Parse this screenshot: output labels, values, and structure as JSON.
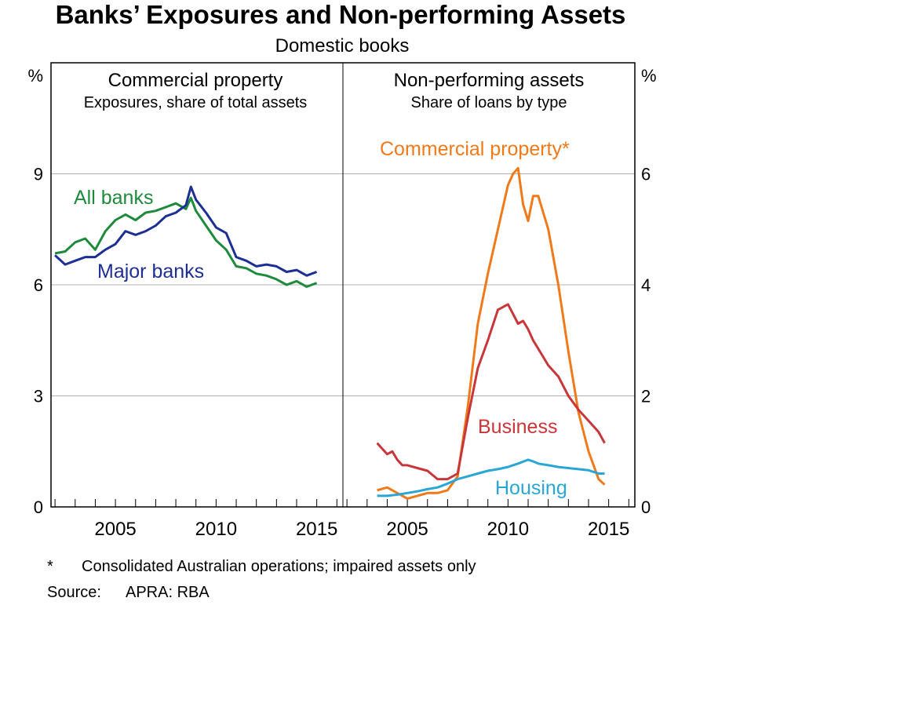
{
  "title": "Banks’ Exposures and Non-performing Assets",
  "subtitle": "Domestic books",
  "footnote_marker": "*",
  "footnote": "Consolidated Australian operations; impaired assets only",
  "source_label": "Source:",
  "source": "APRA: RBA",
  "colors": {
    "all_banks": "#1e8a3c",
    "major_banks": "#1d2f94",
    "commercial_property": "#f07a1a",
    "business": "#c8363a",
    "housing": "#2aa6d6",
    "grid": "#b0b0b0"
  },
  "chart_data": [
    {
      "type": "line",
      "title": "Commercial property",
      "subtitle": "Exposures, share of total assets",
      "ylabel": "%",
      "ylim": [
        0,
        12
      ],
      "yticks": [
        0,
        3,
        6,
        9
      ],
      "xlim": [
        2001.8,
        2016.3
      ],
      "xticks": [
        2005,
        2010,
        2015
      ],
      "grid": true,
      "series": [
        {
          "name": "All banks",
          "color": "#1e8a3c",
          "x": [
            2002.0,
            2002.5,
            2003.0,
            2003.5,
            2004.0,
            2004.5,
            2005.0,
            2005.5,
            2006.0,
            2006.5,
            2007.0,
            2007.5,
            2008.0,
            2008.5,
            2008.75,
            2009.0,
            2009.5,
            2010.0,
            2010.5,
            2011.0,
            2011.5,
            2012.0,
            2012.5,
            2013.0,
            2013.5,
            2014.0,
            2014.5,
            2015.0
          ],
          "y": [
            6.85,
            6.9,
            7.15,
            7.25,
            6.95,
            7.45,
            7.75,
            7.9,
            7.75,
            7.95,
            8.0,
            8.1,
            8.2,
            8.05,
            8.35,
            8.0,
            7.6,
            7.2,
            6.95,
            6.5,
            6.45,
            6.3,
            6.25,
            6.15,
            6.0,
            6.1,
            5.95,
            6.05
          ]
        },
        {
          "name": "Major banks",
          "color": "#1d2f94",
          "x": [
            2002.0,
            2002.5,
            2003.0,
            2003.5,
            2004.0,
            2004.5,
            2005.0,
            2005.5,
            2006.0,
            2006.5,
            2007.0,
            2007.5,
            2008.0,
            2008.5,
            2008.75,
            2009.0,
            2009.5,
            2010.0,
            2010.5,
            2011.0,
            2011.5,
            2012.0,
            2012.5,
            2013.0,
            2013.5,
            2014.0,
            2014.5,
            2015.0
          ],
          "y": [
            6.8,
            6.55,
            6.65,
            6.75,
            6.75,
            6.95,
            7.1,
            7.45,
            7.35,
            7.45,
            7.6,
            7.85,
            7.95,
            8.15,
            8.65,
            8.3,
            7.95,
            7.55,
            7.4,
            6.75,
            6.65,
            6.5,
            6.55,
            6.5,
            6.35,
            6.4,
            6.25,
            6.35
          ]
        }
      ],
      "annotations": [
        {
          "text": "All banks",
          "series": "All banks"
        },
        {
          "text": "Major banks",
          "series": "Major banks"
        }
      ]
    },
    {
      "type": "line",
      "title": "Non-performing assets",
      "subtitle": "Share of loans by type",
      "ylabel": "%",
      "ylim": [
        0,
        8
      ],
      "yticks": [
        0,
        2,
        4,
        6
      ],
      "xlim": [
        2001.8,
        2016.3
      ],
      "xticks": [
        2005,
        2010,
        2015
      ],
      "grid": true,
      "series": [
        {
          "name": "Commercial property*",
          "color": "#f07a1a",
          "x": [
            2003.5,
            2004.0,
            2004.5,
            2005.0,
            2005.5,
            2006.0,
            2006.5,
            2007.0,
            2007.5,
            2008.0,
            2008.5,
            2009.0,
            2009.5,
            2010.0,
            2010.25,
            2010.5,
            2010.75,
            2011.0,
            2011.25,
            2011.5,
            2011.75,
            2012.0,
            2012.5,
            2013.0,
            2013.5,
            2014.0,
            2014.5,
            2014.8
          ],
          "y": [
            0.3,
            0.35,
            0.25,
            0.15,
            0.2,
            0.25,
            0.25,
            0.3,
            0.55,
            1.8,
            3.3,
            4.2,
            5.0,
            5.8,
            6.0,
            6.1,
            5.45,
            5.15,
            5.6,
            5.6,
            5.3,
            5.0,
            4.0,
            2.8,
            1.7,
            1.0,
            0.5,
            0.4
          ]
        },
        {
          "name": "Business",
          "color": "#c8363a",
          "x": [
            2003.5,
            2003.75,
            2004.0,
            2004.25,
            2004.5,
            2004.75,
            2005.0,
            2005.5,
            2006.0,
            2006.5,
            2007.0,
            2007.5,
            2008.0,
            2008.5,
            2009.0,
            2009.5,
            2010.0,
            2010.5,
            2010.75,
            2011.0,
            2011.25,
            2011.5,
            2012.0,
            2012.5,
            2013.0,
            2013.5,
            2014.0,
            2014.5,
            2014.8
          ],
          "y": [
            1.15,
            1.05,
            0.95,
            1.0,
            0.85,
            0.75,
            0.75,
            0.7,
            0.65,
            0.5,
            0.5,
            0.6,
            1.6,
            2.5,
            3.0,
            3.55,
            3.65,
            3.3,
            3.35,
            3.2,
            3.0,
            2.85,
            2.55,
            2.35,
            2.0,
            1.75,
            1.55,
            1.35,
            1.15
          ]
        },
        {
          "name": "Housing",
          "color": "#2aa6d6",
          "x": [
            2003.5,
            2004.0,
            2004.5,
            2005.0,
            2005.5,
            2006.0,
            2006.5,
            2007.0,
            2007.5,
            2008.0,
            2008.5,
            2009.0,
            2009.5,
            2010.0,
            2010.5,
            2011.0,
            2011.25,
            2011.5,
            2012.0,
            2012.5,
            2013.0,
            2013.5,
            2014.0,
            2014.5,
            2014.8
          ],
          "y": [
            0.2,
            0.2,
            0.22,
            0.25,
            0.28,
            0.32,
            0.35,
            0.42,
            0.5,
            0.55,
            0.6,
            0.65,
            0.68,
            0.72,
            0.78,
            0.85,
            0.82,
            0.78,
            0.75,
            0.72,
            0.7,
            0.68,
            0.66,
            0.6,
            0.6
          ]
        }
      ],
      "annotations": [
        {
          "text": "Commercial property*",
          "series": "Commercial property*"
        },
        {
          "text": "Business",
          "series": "Business"
        },
        {
          "text": "Housing",
          "series": "Housing"
        }
      ]
    }
  ]
}
